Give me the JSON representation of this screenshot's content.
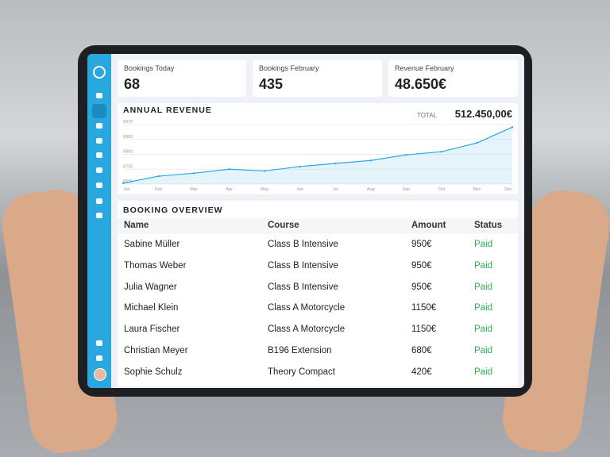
{
  "cards": [
    {
      "label": "Bookings Today",
      "value": "68"
    },
    {
      "label": "Bookings February",
      "value": "435"
    },
    {
      "label": "Revenue February",
      "value": "48.650€"
    }
  ],
  "chart_data": {
    "type": "line",
    "title": "ANNUAL REVENUE",
    "total_label": "TOTAL",
    "total": "512.450,00€",
    "categories": [
      "Jan",
      "Feb",
      "Mar",
      "Apr",
      "May",
      "Jun",
      "Jul",
      "Aug",
      "Sep",
      "Oct",
      "Nov",
      "Dec"
    ],
    "values": [
      635,
      675,
      692,
      715,
      705,
      730,
      748,
      765,
      797,
      815,
      865,
      955
    ],
    "color": "#29a8e0",
    "ylim": [
      630,
      970
    ],
    "yticks": [
      {
        "value": 630,
        "label": "€630"
      },
      {
        "value": 715,
        "label": "€715"
      },
      {
        "value": 800,
        "label": "€800"
      },
      {
        "value": 885,
        "label": "€885"
      },
      {
        "value": 970,
        "label": "€970"
      }
    ],
    "grid": true
  },
  "table": {
    "title": "BOOKING OVERVIEW",
    "header": [
      "Name",
      "Course",
      "Amount",
      "Status"
    ],
    "rows": [
      [
        "Sabine Müller",
        "Class B Intensive",
        "950€",
        "Paid"
      ],
      [
        "Thomas Weber",
        "Class B Intensive",
        "950€",
        "Paid"
      ],
      [
        "Julia Wagner",
        "Class B Intensive",
        "950€",
        "Paid"
      ],
      [
        "Michael Klein",
        "Class A Motorcycle",
        "1150€",
        "Paid"
      ],
      [
        "Laura Fischer",
        "Class A Motorcycle",
        "1150€",
        "Paid"
      ],
      [
        "Christian Meyer",
        "B196 Extension",
        "680€",
        "Paid"
      ],
      [
        "Sophie Schulz",
        "Theory Compact",
        "420€",
        "Paid"
      ]
    ]
  }
}
